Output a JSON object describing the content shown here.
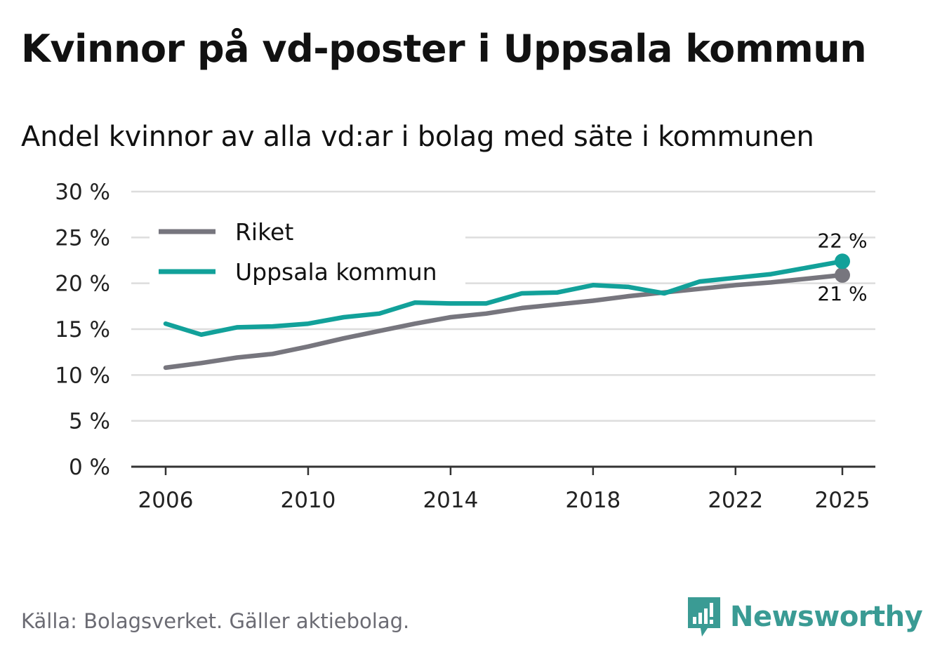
{
  "title": "Kvinnor på vd-poster i Uppsala kommun",
  "subtitle": "Andel kvinnor av alla vd:ar i bolag med säte i kommunen",
  "source": "Källa: Bolagsverket. Gäller aktiebolag.",
  "brand": "Newsworthy",
  "colors": {
    "riket": "#77767e",
    "uppsala": "#12a19a",
    "grid": "#dddddd",
    "axis": "#333333",
    "brand": "#3a9b94"
  },
  "chart_data": {
    "type": "line",
    "x": [
      2006,
      2007,
      2008,
      2009,
      2010,
      2011,
      2012,
      2013,
      2014,
      2015,
      2016,
      2017,
      2018,
      2019,
      2020,
      2021,
      2022,
      2023,
      2024,
      2025
    ],
    "series": [
      {
        "name": "Riket",
        "color": "#77767e",
        "values": [
          10.8,
          11.3,
          11.9,
          12.3,
          13.1,
          14.0,
          14.8,
          15.6,
          16.3,
          16.7,
          17.3,
          17.7,
          18.1,
          18.6,
          19.0,
          19.4,
          19.8,
          20.1,
          20.5,
          20.9
        ]
      },
      {
        "name": "Uppsala kommun",
        "color": "#12a19a",
        "values": [
          15.6,
          14.4,
          15.2,
          15.3,
          15.6,
          16.3,
          16.7,
          17.9,
          17.8,
          17.8,
          18.9,
          19.0,
          19.8,
          19.6,
          18.9,
          20.2,
          20.6,
          21.0,
          21.7,
          22.4
        ]
      }
    ],
    "yticks": [
      0,
      5,
      10,
      15,
      20,
      25,
      30
    ],
    "ytick_labels": [
      "0 %",
      "5 %",
      "10 %",
      "15 %",
      "20 %",
      "25 %",
      "30 %"
    ],
    "xticks": [
      2006,
      2010,
      2014,
      2018,
      2022,
      2025
    ],
    "xtick_labels": [
      "2006",
      "2010",
      "2014",
      "2018",
      "2022",
      "2025"
    ],
    "ylim": [
      0,
      30
    ],
    "xlim": [
      2006,
      2025
    ],
    "end_labels": {
      "uppsala": "22 %",
      "riket": "21 %"
    },
    "legend": [
      "Riket",
      "Uppsala kommun"
    ],
    "legend_position": "top-left",
    "grid": true
  }
}
